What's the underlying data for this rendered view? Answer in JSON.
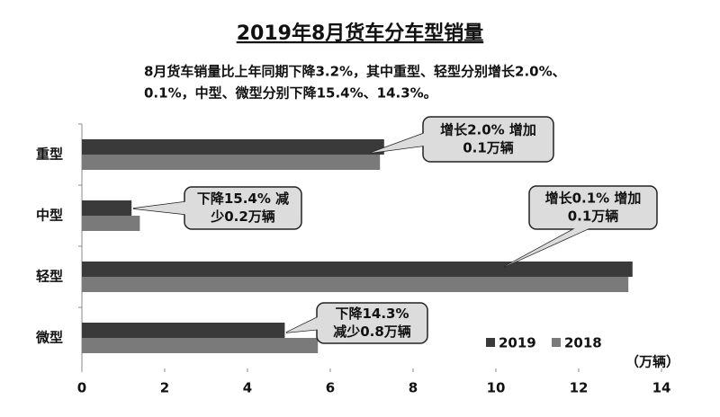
{
  "chart_data": {
    "type": "bar",
    "orientation": "horizontal",
    "title": "2019年8月货车分车型销量",
    "subtitle": [
      "8月货车销量比上年同期下降3.2%，其中重型、轻型分别增长2.0%、",
      "0.1%，中型、微型分别下降15.4%、14.3%。"
    ],
    "categories": [
      "重型",
      "中型",
      "轻型",
      "微型"
    ],
    "series": [
      {
        "name": "2019",
        "color": "#3a3a3a",
        "values": [
          7.3,
          1.2,
          13.3,
          4.9
        ]
      },
      {
        "name": "2018",
        "color": "#7a7a7a",
        "values": [
          7.2,
          1.4,
          13.2,
          5.7
        ]
      }
    ],
    "xlim": [
      0,
      14
    ],
    "xticks": [
      0,
      2,
      4,
      6,
      8,
      10,
      12,
      14
    ],
    "x_unit": "（万辆）",
    "legend": "lower-right",
    "annotations": [
      {
        "lines": [
          "增长2.0% 增加",
          "0.1万辆"
        ]
      },
      {
        "lines": [
          "下降15.4% 减",
          "少0.2万辆"
        ]
      },
      {
        "lines": [
          "增长0.1% 增加",
          "0.1万辆"
        ]
      },
      {
        "lines": [
          "下降14.3%",
          "减少0.8万辆"
        ]
      }
    ]
  }
}
